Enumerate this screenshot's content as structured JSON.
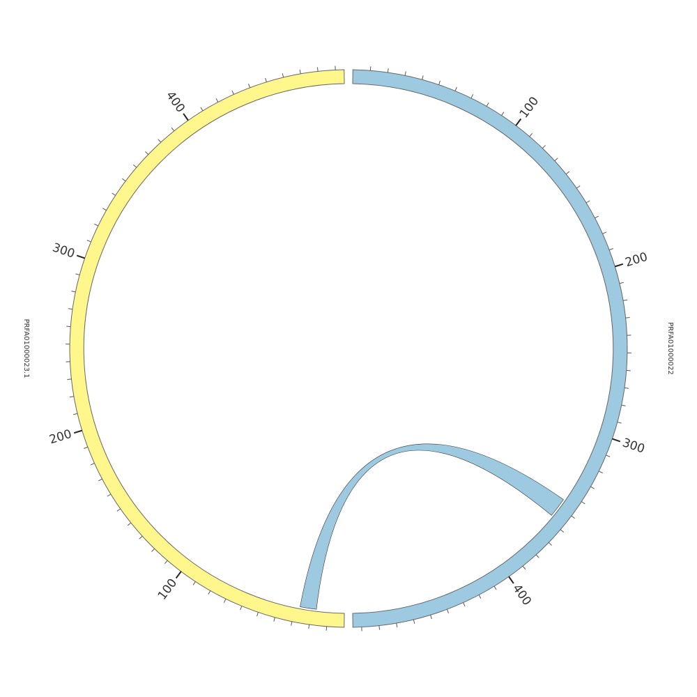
{
  "chart_data": {
    "type": "chord",
    "sectors": [
      {
        "name": "PRFA01000022",
        "color": "#9ecae1",
        "length": 495
      },
      {
        "name": "PRFA01000023.1",
        "color": "#fff78c",
        "length": 495
      }
    ],
    "major_ticks": [
      100,
      200,
      300,
      400
    ],
    "minor_ticks": [
      10,
      20,
      30,
      40,
      50,
      60,
      70,
      80,
      90,
      110,
      120,
      130,
      140,
      150,
      160,
      170,
      180,
      190,
      210,
      220,
      230,
      240,
      250,
      260,
      270,
      280,
      290,
      310,
      320,
      330,
      340,
      350,
      360,
      370,
      380,
      390,
      410,
      420,
      430,
      440,
      450,
      460,
      470,
      480,
      490
    ],
    "links": [
      {
        "from": {
          "sector": "PRFA01000022",
          "start": 345,
          "end": 357
        },
        "to": {
          "sector": "PRFA01000023.1",
          "start": 17,
          "end": 27
        },
        "color": "#9ecae1"
      }
    ]
  }
}
